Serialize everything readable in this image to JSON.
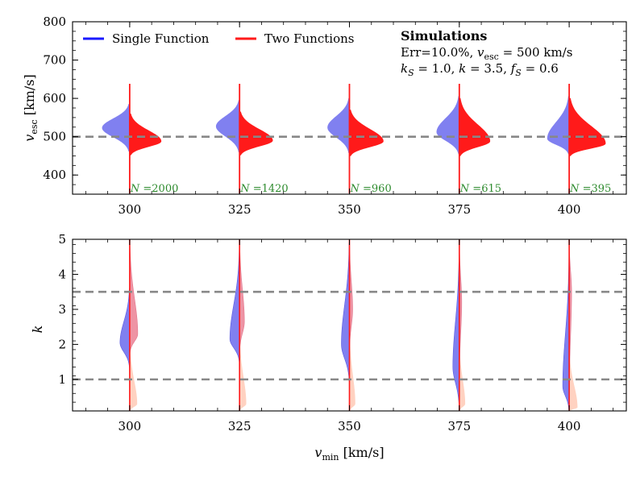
{
  "chart_data": [
    {
      "panel": "top",
      "type": "violin",
      "ylabel_main": "v",
      "ylabel_sub": "esc",
      "ylabel_unit": " [km/s]",
      "ylim": [
        350,
        800
      ],
      "yticks": [
        400,
        500,
        600,
        700,
        800
      ],
      "xlim": [
        287,
        413
      ],
      "xticks": [
        300,
        325,
        350,
        375,
        400
      ],
      "reference_lines": [
        500
      ],
      "legend": {
        "placement": "top-left",
        "entries": [
          {
            "label": "Single Function",
            "color": "#1a1aff"
          },
          {
            "label": "Two Functions",
            "color": "#ff1a1a"
          }
        ]
      },
      "info": {
        "title": "Simulations",
        "line1": "Err=10.0%, v_esc = 500 km/s",
        "line2": "k_S = 1.0, k = 3.5, f_S = 0.6"
      },
      "colors": {
        "single": "#8080f0",
        "two": "#ff1a1a",
        "divider": "#ff1a1a"
      },
      "groups": [
        {
          "vmin": 300,
          "N": "2000",
          "single": {
            "peak": 523,
            "width": 34,
            "range": [
              462,
              585
            ]
          },
          "two": {
            "peak": 488,
            "width": 39,
            "range": [
              452,
              560
            ]
          },
          "spike_top": 638,
          "spike_bottom": 352
        },
        {
          "vmin": 325,
          "N": "1420",
          "single": {
            "peak": 527,
            "width": 29,
            "range": [
              460,
              595
            ]
          },
          "two": {
            "peak": 490,
            "width": 41,
            "range": [
              452,
              565
            ]
          },
          "spike_top": 638,
          "spike_bottom": 352
        },
        {
          "vmin": 350,
          "N": "960",
          "single": {
            "peak": 524,
            "width": 27,
            "range": [
              458,
              600
            ]
          },
          "two": {
            "peak": 488,
            "width": 42,
            "range": [
              450,
              570
            ]
          },
          "spike_top": 638,
          "spike_bottom": 352
        },
        {
          "vmin": 375,
          "N": "615",
          "single": {
            "peak": 512,
            "width": 28,
            "range": [
              455,
              605
            ]
          },
          "two": {
            "peak": 488,
            "width": 38,
            "range": [
              450,
              600
            ]
          },
          "spike_top": 638,
          "spike_bottom": 352
        },
        {
          "vmin": 400,
          "N": "395",
          "single": {
            "peak": 495,
            "width": 27,
            "range": [
              455,
              605
            ]
          },
          "two": {
            "peak": 482,
            "width": 45,
            "range": [
              450,
              600
            ]
          },
          "spike_top": 638,
          "spike_bottom": 352
        }
      ]
    },
    {
      "panel": "bottom",
      "type": "violin",
      "ylabel": "k",
      "xlabel_main": "v",
      "xlabel_sub": "min",
      "xlabel_unit": " [km/s]",
      "ylim": [
        0.1,
        5
      ],
      "yticks": [
        1,
        2,
        3,
        4,
        5
      ],
      "xlim": [
        287,
        413
      ],
      "xticks": [
        300,
        325,
        350,
        375,
        400
      ],
      "reference_lines": [
        1.0,
        3.5
      ],
      "colors": {
        "single": "#8080f0",
        "two_k": "#ee8fa0",
        "two_kS": "#ffd0be",
        "divider": "#ff1a1a"
      },
      "groups": [
        {
          "vmin": 300,
          "single": {
            "peak": 2.05,
            "width": 12,
            "range": [
              1.35,
              3.6
            ]
          },
          "two_k": {
            "peak": 2.3,
            "width": 10,
            "range": [
              1.75,
              4.9
            ]
          },
          "two_kS": {
            "peak": 0.3,
            "width": 9,
            "range": [
              0.1,
              2.0
            ]
          }
        },
        {
          "vmin": 325,
          "single": {
            "peak": 2.15,
            "width": 12,
            "range": [
              1.5,
              4.7
            ]
          },
          "two_k": {
            "peak": 2.65,
            "width": 6,
            "range": [
              1.8,
              5.0
            ]
          },
          "two_kS": {
            "peak": 0.3,
            "width": 8,
            "range": [
              0.1,
              2.2
            ]
          }
        },
        {
          "vmin": 350,
          "single": {
            "peak": 2.0,
            "width": 10,
            "range": [
              0.95,
              4.9
            ]
          },
          "two_k": {
            "peak": 3.0,
            "width": 4,
            "range": [
              1.8,
              5.0
            ]
          },
          "two_kS": {
            "peak": 0.3,
            "width": 7,
            "range": [
              0.1,
              2.3
            ]
          }
        },
        {
          "vmin": 375,
          "single": {
            "peak": 1.35,
            "width": 8,
            "range": [
              0.2,
              4.7
            ]
          },
          "two_k": {
            "peak": 3.2,
            "width": 3,
            "range": [
              1.0,
              5.0
            ]
          },
          "two_kS": {
            "peak": 0.3,
            "width": 7,
            "range": [
              0.1,
              2.0
            ]
          }
        },
        {
          "vmin": 400,
          "single": {
            "peak": 0.8,
            "width": 8,
            "range": [
              0.1,
              4.6
            ]
          },
          "two_k": {
            "peak": 3.5,
            "width": 3,
            "range": [
              0.4,
              5.0
            ]
          },
          "two_kS": {
            "peak": 0.2,
            "width": 10,
            "range": [
              0.1,
              1.8
            ]
          }
        }
      ]
    }
  ]
}
